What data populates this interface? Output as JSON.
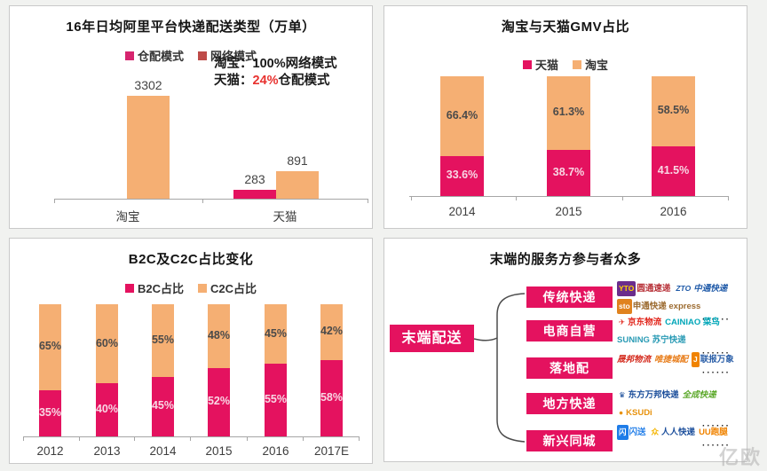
{
  "watermark": "亿欧",
  "chart_data": [
    {
      "type": "bar",
      "panel": "top-left",
      "title": "16年日均阿里平台快递配送类型（万单）",
      "categories": [
        "淘宝",
        "天猫"
      ],
      "series": [
        {
          "name": "仓配模式",
          "color": "#E4125F",
          "values": [
            null,
            283
          ]
        },
        {
          "name": "网络模式",
          "color": "#F5AF73",
          "values": [
            3302,
            891
          ]
        }
      ],
      "legend": [
        {
          "label": "仓配模式",
          "color": "#D6246E"
        },
        {
          "label": "网络模式",
          "color": "#BE4B48"
        }
      ],
      "annotation": {
        "line1": "淘宝：100%网络模式",
        "line2_prefix": "天猫：",
        "line2_highlight": "24%",
        "line2_suffix": "仓配模式",
        "highlight_color": "#E8322F"
      },
      "xlabel": "",
      "ylabel": "",
      "ylim": [
        0,
        3302
      ],
      "grid": false,
      "legend_position": "top"
    },
    {
      "type": "bar",
      "stacked": true,
      "panel": "top-right",
      "title": "淘宝与天猫GMV占比",
      "categories": [
        "2014",
        "2015",
        "2016"
      ],
      "series": [
        {
          "name": "天猫",
          "color": "#E4125F",
          "values": [
            33.6,
            38.7,
            41.5
          ]
        },
        {
          "name": "淘宝",
          "color": "#F5AF73",
          "values": [
            66.4,
            61.3,
            58.5
          ]
        }
      ],
      "value_suffix": "%",
      "xlabel": "",
      "ylabel": "",
      "ylim": [
        0,
        100
      ],
      "grid": false,
      "legend_position": "top"
    },
    {
      "type": "bar",
      "stacked": true,
      "panel": "bottom-left",
      "title": "B2C及C2C占比变化",
      "categories": [
        "2012",
        "2013",
        "2014",
        "2015",
        "2016",
        "2017E"
      ],
      "series": [
        {
          "name": "B2C占比",
          "color": "#E4125F",
          "values": [
            35,
            40,
            45,
            52,
            55,
            58
          ]
        },
        {
          "name": "C2C占比",
          "color": "#F5AF73",
          "values": [
            65,
            60,
            55,
            48,
            45,
            42
          ]
        }
      ],
      "value_suffix": "%",
      "xlabel": "",
      "ylabel": "",
      "ylim": [
        0,
        100
      ],
      "grid": false,
      "legend_position": "top"
    }
  ],
  "diagram": {
    "panel": "bottom-right",
    "title": "末端的服务方参与者众多",
    "root_label": "末端配送",
    "branches": [
      {
        "label": "传统快递",
        "more": "······",
        "logos": [
          {
            "icon": "YTO",
            "icon_bg": "#6B2D8C",
            "icon_fg": "#FFD200",
            "text": "圆通速递",
            "color": "#B8333A"
          },
          {
            "icon": "ZTO",
            "icon_fg": "#1F5AA8",
            "text": "中通快递",
            "color": "#1F5AA8",
            "italic": true
          },
          {
            "icon": "sto",
            "icon_bg": "#E0821E",
            "icon_fg": "#FFFFFF",
            "text": "申通快递 express",
            "color": "#9C6B30"
          }
        ]
      },
      {
        "label": "电商自营",
        "more": "······",
        "logos": [
          {
            "icon": "✈",
            "icon_fg": "#E1251B",
            "text": "京东物流",
            "color": "#E1251B"
          },
          {
            "icon": "",
            "text": "CAINIAO 菜鸟",
            "color": "#00A6B8"
          },
          {
            "icon": "",
            "text": "SUNING 苏宁快递",
            "color": "#2A9BB5"
          }
        ]
      },
      {
        "label": "落地配",
        "more": "······",
        "logos": [
          {
            "icon": "",
            "text": "晟邦物流",
            "color": "#D42B1E",
            "italic": true
          },
          {
            "icon": "",
            "text": "唯捷城配",
            "color": "#E87F1E",
            "italic": true
          },
          {
            "icon": "J",
            "icon_bg": "#F08300",
            "icon_fg": "#FFFFFF",
            "text": "联报万象",
            "color": "#2B5FA8"
          }
        ]
      },
      {
        "label": "地方快递",
        "more": "······",
        "logos": [
          {
            "icon": "♛",
            "icon_fg": "#1B4E9B",
            "text": "东方万邦快递",
            "color": "#1B4E9B"
          },
          {
            "icon": "",
            "text": "全成快递",
            "color": "#5BA829",
            "italic": true
          },
          {
            "icon": "●",
            "icon_fg": "#E8920C",
            "text": "KSUDi",
            "color": "#E8920C"
          }
        ]
      },
      {
        "label": "新兴同城",
        "more": "······",
        "logos": [
          {
            "icon": "闪",
            "icon_bg": "#1E7CE8",
            "icon_fg": "#FFFFFF",
            "text": "闪送",
            "color": "#1E7CE8"
          },
          {
            "icon": "众",
            "icon_fg": "#F5B500",
            "text": "人人快递",
            "color": "#1B4E9B"
          },
          {
            "icon": "",
            "text": "UU跑腿",
            "color": "#F08300"
          }
        ]
      }
    ]
  }
}
